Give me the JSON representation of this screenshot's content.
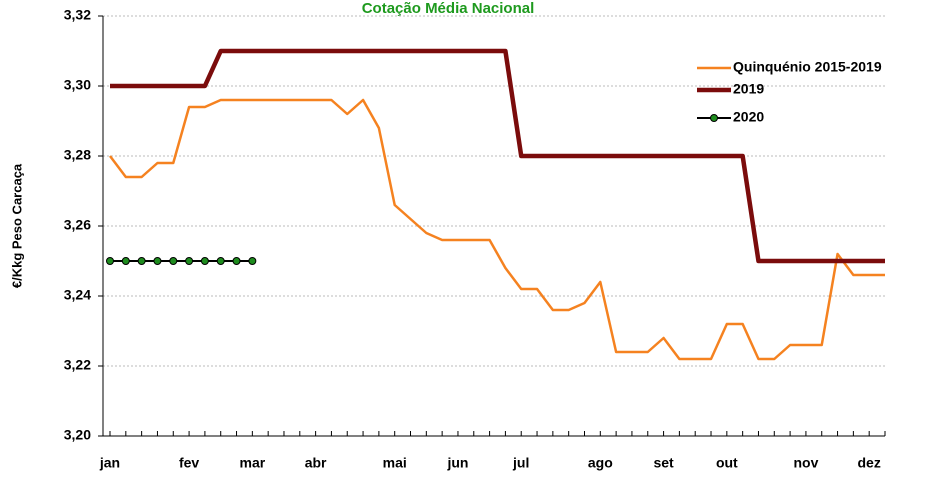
{
  "chart_data": {
    "type": "line",
    "title": "Cotação Média Nacional",
    "y_label": "€/Kkg Peso Carcaça",
    "categories": [
      "jan",
      null,
      null,
      null,
      null,
      "fev",
      null,
      null,
      null,
      "mar",
      null,
      null,
      null,
      "abr",
      null,
      null,
      null,
      null,
      "mai",
      null,
      null,
      null,
      "jun",
      null,
      null,
      null,
      "jul",
      null,
      null,
      null,
      null,
      "ago",
      null,
      null,
      null,
      "set",
      null,
      null,
      null,
      "out",
      null,
      null,
      null,
      null,
      "nov",
      null,
      null,
      null,
      "dez",
      null
    ],
    "series": [
      {
        "name": "Quinquénio 2015-2019",
        "color": "#f58220",
        "width": 2.5,
        "markers": false,
        "values": [
          3.28,
          3.274,
          3.274,
          3.278,
          3.278,
          3.294,
          3.294,
          3.296,
          3.296,
          3.296,
          3.296,
          3.296,
          3.296,
          3.296,
          3.296,
          3.292,
          3.296,
          3.288,
          3.266,
          3.262,
          3.258,
          3.256,
          3.256,
          3.256,
          3.256,
          3.248,
          3.242,
          3.242,
          3.236,
          3.236,
          3.238,
          3.244,
          3.224,
          3.224,
          3.224,
          3.228,
          3.222,
          3.222,
          3.222,
          3.232,
          3.232,
          3.222,
          3.222,
          3.226,
          3.226,
          3.226,
          3.252,
          3.246,
          3.246,
          3.246
        ]
      },
      {
        "name": "2019",
        "color": "#7b0c0c",
        "width": 4.5,
        "markers": false,
        "values": [
          3.3,
          3.3,
          3.3,
          3.3,
          3.3,
          3.3,
          3.3,
          3.31,
          3.31,
          3.31,
          3.31,
          3.31,
          3.31,
          3.31,
          3.31,
          3.31,
          3.31,
          3.31,
          3.31,
          3.31,
          3.31,
          3.31,
          3.31,
          3.31,
          3.31,
          3.31,
          3.28,
          3.28,
          3.28,
          3.28,
          3.28,
          3.28,
          3.28,
          3.28,
          3.28,
          3.28,
          3.28,
          3.28,
          3.28,
          3.28,
          3.28,
          3.25,
          3.25,
          3.25,
          3.25,
          3.25,
          3.25,
          3.25,
          3.25,
          3.25
        ]
      },
      {
        "name": "2020",
        "color": "#000000",
        "marker_color": "#1e8c1e",
        "width": 2,
        "markers": true,
        "values": [
          3.25,
          3.25,
          3.25,
          3.25,
          3.25,
          3.25,
          3.25,
          3.25,
          3.25,
          3.25,
          null,
          null,
          null,
          null,
          null,
          null,
          null,
          null,
          null,
          null,
          null,
          null,
          null,
          null,
          null,
          null,
          null,
          null,
          null,
          null,
          null,
          null,
          null,
          null,
          null,
          null,
          null,
          null,
          null,
          null,
          null,
          null,
          null,
          null,
          null,
          null,
          null,
          null,
          null,
          null
        ]
      }
    ],
    "ylim": [
      3.2,
      3.32
    ],
    "yticks": [
      {
        "value": 3.2,
        "label": "3,20"
      },
      {
        "value": 3.22,
        "label": "3,22"
      },
      {
        "value": 3.24,
        "label": "3,24"
      },
      {
        "value": 3.26,
        "label": "3,26"
      },
      {
        "value": 3.28,
        "label": "3,28"
      },
      {
        "value": 3.3,
        "label": "3,30"
      },
      {
        "value": 3.32,
        "label": "3,32"
      }
    ],
    "grid": true,
    "legend": "upper right"
  }
}
